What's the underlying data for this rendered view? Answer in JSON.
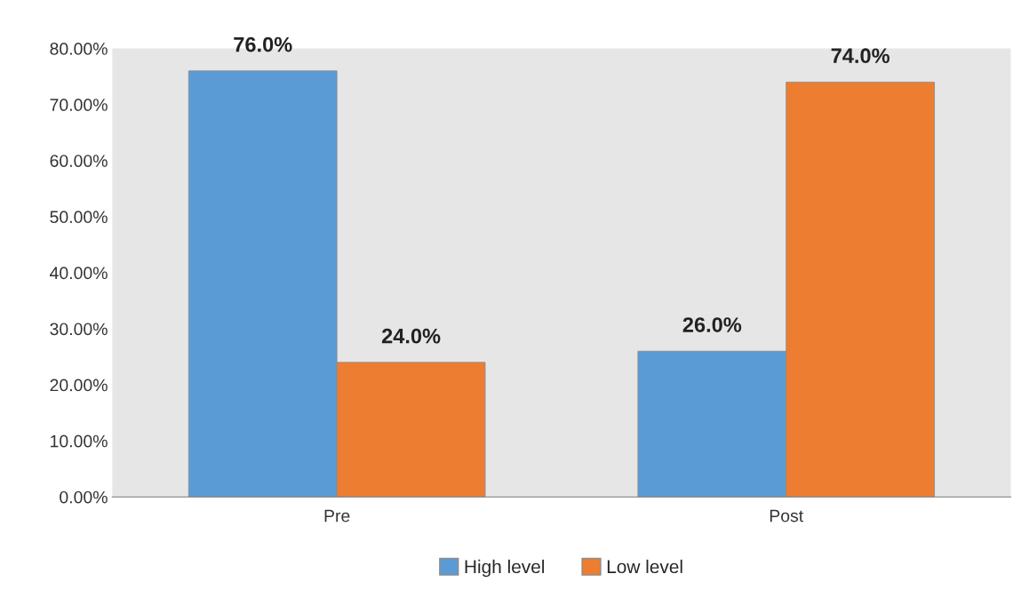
{
  "chart_data": {
    "type": "bar",
    "categories": [
      "Pre",
      "Post"
    ],
    "series": [
      {
        "name": "High level",
        "color": "#5b9bd5",
        "values": [
          76,
          26
        ],
        "value_labels": [
          "76.0%",
          "26.0%"
        ]
      },
      {
        "name": "Low level",
        "color": "#ed7d31",
        "values": [
          24,
          74
        ],
        "value_labels": [
          "24.0%",
          "74.0%"
        ]
      }
    ],
    "ylim": [
      0,
      80
    ],
    "yticks": [
      {
        "value": 0,
        "label": "0.00%"
      },
      {
        "value": 10,
        "label": "10.00%"
      },
      {
        "value": 20,
        "label": "20.00%"
      },
      {
        "value": 30,
        "label": "30.00%"
      },
      {
        "value": 40,
        "label": "40.00%"
      },
      {
        "value": 50,
        "label": "50.00%"
      },
      {
        "value": 60,
        "label": "60.00%"
      },
      {
        "value": 70,
        "label": "70.00%"
      },
      {
        "value": 80,
        "label": "80.00%"
      }
    ],
    "grid": false,
    "legend": "bottom"
  }
}
